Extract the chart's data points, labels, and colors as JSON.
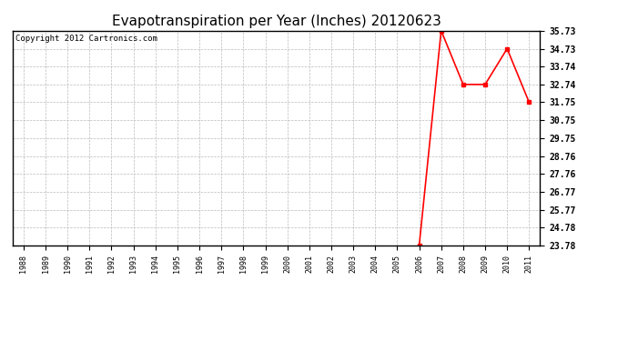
{
  "title": "Evapotranspiration per Year (Inches) 20120623",
  "copyright_text": "Copyright 2012 Cartronics.com",
  "x_years": [
    1988,
    1989,
    1990,
    1991,
    1992,
    1993,
    1994,
    1995,
    1996,
    1997,
    1998,
    1999,
    2000,
    2001,
    2002,
    2003,
    2004,
    2005,
    2006,
    2007,
    2008,
    2009,
    2010,
    2011
  ],
  "y_values": [
    null,
    null,
    null,
    null,
    null,
    null,
    null,
    null,
    null,
    null,
    null,
    null,
    null,
    null,
    null,
    null,
    null,
    null,
    23.78,
    35.73,
    32.74,
    32.74,
    34.73,
    31.75
  ],
  "yticks": [
    23.78,
    24.78,
    25.77,
    26.77,
    27.76,
    28.76,
    29.75,
    30.75,
    31.75,
    32.74,
    33.74,
    34.73,
    35.73
  ],
  "ylim_min": 23.78,
  "ylim_max": 35.73,
  "line_color": "#ff0000",
  "marker": "s",
  "marker_size": 3,
  "bg_color": "#ffffff",
  "plot_bg_color": "#ffffff",
  "grid_color": "#bbbbbb",
  "title_fontsize": 11,
  "copyright_fontsize": 6.5
}
